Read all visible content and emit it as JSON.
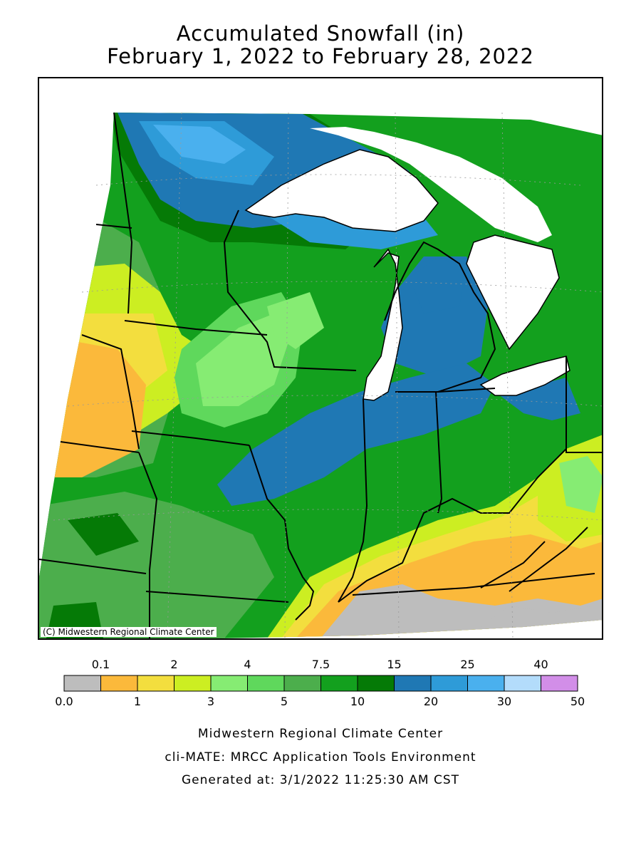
{
  "title_line1": "Accumulated Snowfall (in)",
  "title_line2": "February 1, 2022 to February 28, 2022",
  "map_credit": "(C) Midwestern Regional Climate Center",
  "legend": {
    "colors": [
      "#bdbdbd",
      "#fbb93b",
      "#f3de3e",
      "#ccee22",
      "#86ec73",
      "#5fd85c",
      "#4cae4c",
      "#13a01e",
      "#057a06",
      "#1f78b4",
      "#2e9bd8",
      "#4ab0ee",
      "#b3dcfb",
      "#d28ee8"
    ],
    "top_labels": [
      "0.1",
      "2",
      "4",
      "7.5",
      "15",
      "25",
      "40"
    ],
    "bottom_labels": [
      "0.0",
      "1",
      "3",
      "5",
      "10",
      "20",
      "30",
      "50"
    ]
  },
  "footer": {
    "line1": "Midwestern Regional Climate Center",
    "line2": "cli-MATE: MRCC Application Tools Environment",
    "line3": "Generated at: 3/1/2022 11:25:30 AM CST"
  }
}
